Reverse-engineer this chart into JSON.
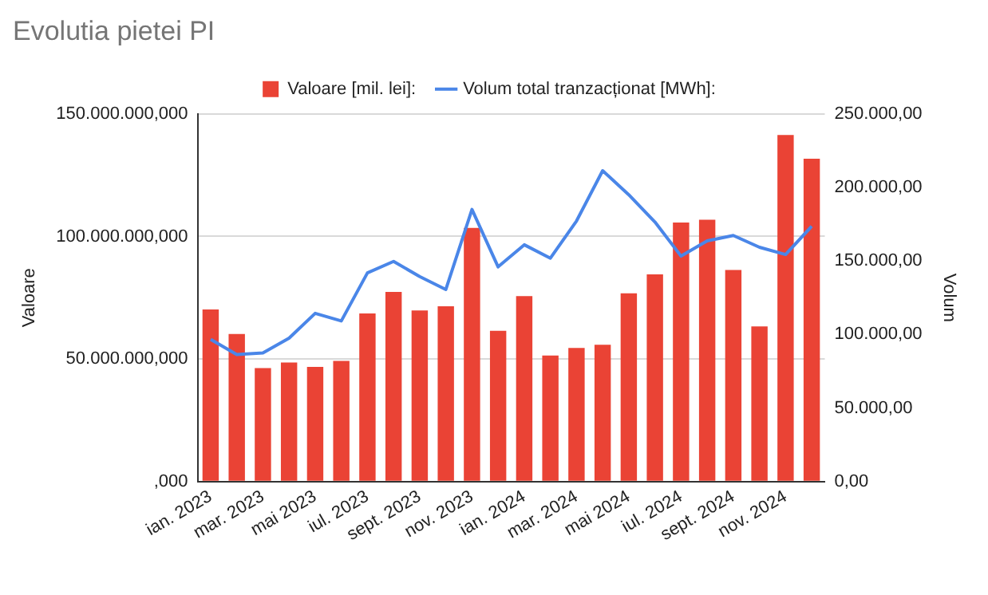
{
  "chart_data": {
    "type": "bar",
    "title": "Evolutia pietei PI",
    "ylabel": "Valoare",
    "y2label": "Volum",
    "categories": [
      "ian. 2023",
      null,
      "mar. 2023",
      null,
      "mai 2023",
      null,
      "iul. 2023",
      null,
      "sept. 2023",
      null,
      "nov. 2023",
      null,
      "ian. 2024",
      null,
      "mar. 2024",
      null,
      "mai 2024",
      null,
      "iul. 2024",
      null,
      "sept. 2024",
      null,
      "nov. 2024",
      null
    ],
    "series": [
      {
        "name": "Valoare [mil. lei]:",
        "color": "#ea4335",
        "values": [
          70200000,
          60200000,
          46300000,
          48600000,
          46800000,
          49200000,
          68600000,
          77400000,
          69800000,
          71500000,
          103500000,
          61500000,
          75700000,
          51400000,
          54500000,
          55800000,
          76800000,
          84500000,
          105700000,
          106800000,
          86300000,
          63300000,
          141400000,
          131700000
        ]
      },
      {
        "name": "Volum total tranzacționat [MWh]:",
        "type": "line",
        "axis": "y2",
        "color": "#4a86e8",
        "marker": "none",
        "line_style": "solid",
        "values": [
          96700,
          86400,
          87500,
          97500,
          114400,
          109200,
          141900,
          149700,
          139400,
          130600,
          185000,
          146000,
          161000,
          151900,
          177200,
          211400,
          195000,
          176500,
          153300,
          163700,
          167300,
          159300,
          154400,
          173600
        ]
      }
    ],
    "ylim": [
      0,
      150000000
    ],
    "yticks": [
      {
        "value": 0,
        "label": ",000"
      },
      {
        "value": 50000000,
        "label": "50.000.000,000"
      },
      {
        "value": 100000000,
        "label": "100.000.000,000"
      },
      {
        "value": 150000000,
        "label": "150.000.000,000"
      }
    ],
    "y2lim": [
      0,
      250000
    ],
    "y2ticks": [
      {
        "value": 0,
        "label": "0,00"
      },
      {
        "value": 50000,
        "label": "50.000,00"
      },
      {
        "value": 100000,
        "label": "100.000,00"
      },
      {
        "value": 150000,
        "label": "150.000,00"
      },
      {
        "value": 200000,
        "label": "200.000,00"
      },
      {
        "value": 250000,
        "label": "250.000,00"
      }
    ],
    "grid": "y",
    "legend": "top"
  }
}
